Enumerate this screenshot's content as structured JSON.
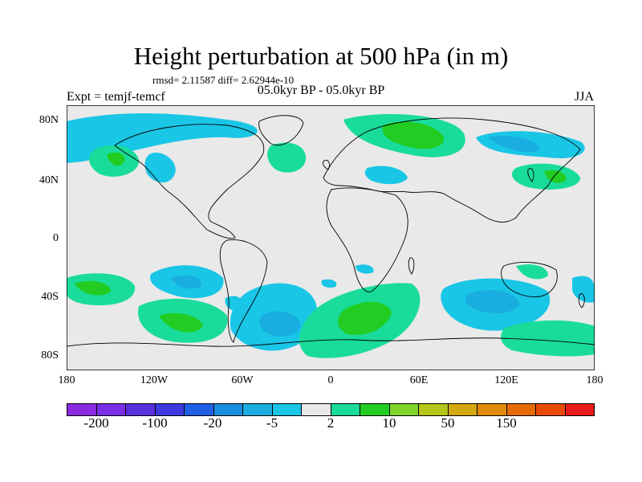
{
  "title": "Height perturbation at 500 hPa (in m)",
  "stats": "rmsd= 2.11587 diff= 2.62944e-10",
  "experiment": "Expt = temjf-temcf",
  "period": "05.0kyr BP - 05.0kyr BP",
  "season": "JJA",
  "lat_ticks": [
    "80N",
    "40N",
    "0",
    "40S",
    "80S"
  ],
  "lon_ticks": [
    "180",
    "120W",
    "60W",
    "0",
    "60E",
    "120E",
    "180"
  ],
  "colorbar": {
    "colors": [
      "#8a2be2",
      "#7a2ee6",
      "#5a2fe0",
      "#3c3ae0",
      "#2060e6",
      "#1a8ee0",
      "#1aaee0",
      "#19c6e6",
      "#e9e9e9",
      "#19dc9a",
      "#22cc22",
      "#7fd42a",
      "#b7c618",
      "#d4a80e",
      "#e08a08",
      "#e66a06",
      "#ea4a08",
      "#ea1a1a"
    ],
    "labels": [
      "-200",
      "-100",
      "-20",
      "-5",
      "2",
      "10",
      "50",
      "150"
    ]
  },
  "colors": {
    "land_background": "#e9e9e9",
    "positive": "#22cc22",
    "positive_light": "#19dc9a",
    "negative": "#1aaee0",
    "negative_light": "#19c6e6"
  }
}
